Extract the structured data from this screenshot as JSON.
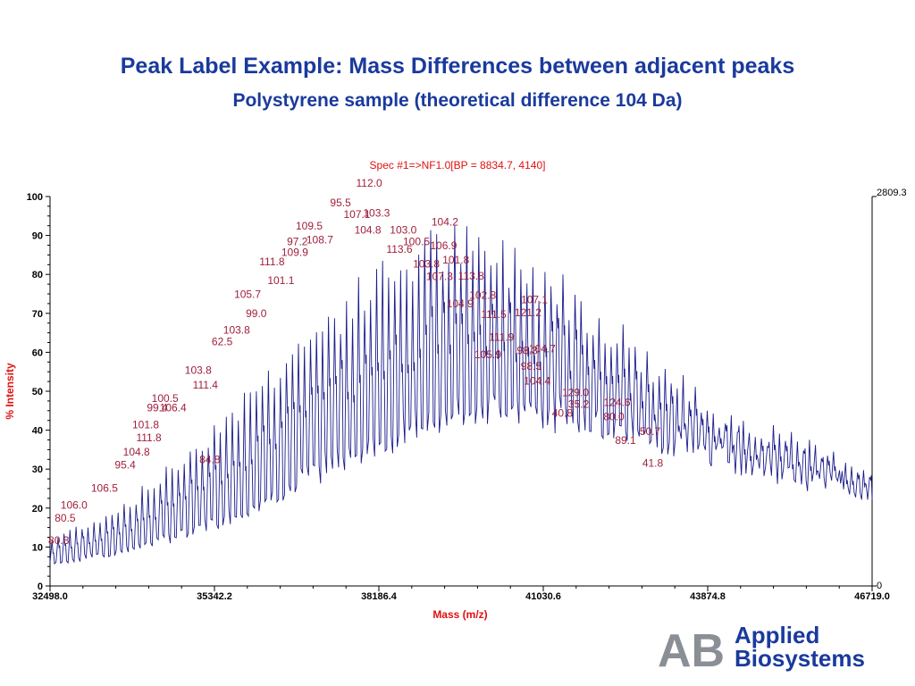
{
  "header": {
    "title": "Peak Label Example: Mass Differences between adjacent peaks",
    "subtitle": "Polystyrene sample (theoretical difference 104 Da)"
  },
  "colors": {
    "title": "#1a3a9c",
    "trace": "#1c1c8c",
    "labels": "#a0203c",
    "axis_title": "#e01010"
  },
  "logo": {
    "mark": "AB",
    "line1": "Applied",
    "line2": "Biosystems"
  },
  "chart_data": {
    "type": "line",
    "title": "Spec #1=>NF1.0[BP = 8834.7, 4140]",
    "xlabel": "Mass (m/z)",
    "ylabel": "% Intensity",
    "xlim": [
      32498.0,
      46719.0
    ],
    "ylim": [
      0,
      100
    ],
    "x_ticks": [
      "32498.0",
      "35342.2",
      "38186.4",
      "41030.6",
      "43874.8",
      "46719.0"
    ],
    "y_ticks": [
      "0",
      "10",
      "20",
      "30",
      "40",
      "50",
      "60",
      "70",
      "80",
      "90",
      "100"
    ],
    "right_axis": {
      "top": "2809.3",
      "bottom": "0"
    },
    "grid": false,
    "peak_spacing_da": 104,
    "envelope": [
      {
        "x": 32498,
        "y": 12
      },
      {
        "x": 33000,
        "y": 16
      },
      {
        "x": 33500,
        "y": 19
      },
      {
        "x": 34000,
        "y": 24
      },
      {
        "x": 34500,
        "y": 30
      },
      {
        "x": 35000,
        "y": 37
      },
      {
        "x": 35500,
        "y": 45
      },
      {
        "x": 36000,
        "y": 52
      },
      {
        "x": 36500,
        "y": 60
      },
      {
        "x": 37000,
        "y": 67
      },
      {
        "x": 37500,
        "y": 74
      },
      {
        "x": 38000,
        "y": 80
      },
      {
        "x": 38500,
        "y": 86
      },
      {
        "x": 39000,
        "y": 91
      },
      {
        "x": 39500,
        "y": 92
      },
      {
        "x": 40000,
        "y": 90
      },
      {
        "x": 40500,
        "y": 88
      },
      {
        "x": 41000,
        "y": 85
      },
      {
        "x": 41500,
        "y": 79
      },
      {
        "x": 42000,
        "y": 73
      },
      {
        "x": 42500,
        "y": 66
      },
      {
        "x": 43000,
        "y": 59
      },
      {
        "x": 43500,
        "y": 53
      },
      {
        "x": 44000,
        "y": 48
      },
      {
        "x": 44500,
        "y": 44
      },
      {
        "x": 45000,
        "y": 41
      },
      {
        "x": 45500,
        "y": 38
      },
      {
        "x": 46000,
        "y": 35
      },
      {
        "x": 46719,
        "y": 32
      }
    ],
    "baseline": [
      {
        "x": 32498,
        "y": 6
      },
      {
        "x": 33500,
        "y": 8
      },
      {
        "x": 34500,
        "y": 12
      },
      {
        "x": 35500,
        "y": 17
      },
      {
        "x": 36500,
        "y": 24
      },
      {
        "x": 37500,
        "y": 32
      },
      {
        "x": 38500,
        "y": 39
      },
      {
        "x": 39500,
        "y": 44
      },
      {
        "x": 40500,
        "y": 46
      },
      {
        "x": 41500,
        "y": 44
      },
      {
        "x": 42500,
        "y": 40
      },
      {
        "x": 43500,
        "y": 36
      },
      {
        "x": 44500,
        "y": 32
      },
      {
        "x": 45500,
        "y": 28
      },
      {
        "x": 46719,
        "y": 24
      }
    ],
    "annotations": [
      {
        "text": "80.3",
        "x": 32648,
        "y": 10.8
      },
      {
        "text": "80.5",
        "x": 32760,
        "y": 16.5
      },
      {
        "text": "106.0",
        "x": 32912,
        "y": 19.8
      },
      {
        "text": "106.5",
        "x": 33439,
        "y": 24.2
      },
      {
        "text": "95.4",
        "x": 33798,
        "y": 30.2
      },
      {
        "text": "104.8",
        "x": 33993,
        "y": 33.5
      },
      {
        "text": "111.8",
        "x": 34208,
        "y": 37.2
      },
      {
        "text": "101.8",
        "x": 34152,
        "y": 40.5
      },
      {
        "text": "99.4",
        "x": 34353,
        "y": 44.8
      },
      {
        "text": "106.4",
        "x": 34627,
        "y": 44.8
      },
      {
        "text": "100.5",
        "x": 34487,
        "y": 47.2
      },
      {
        "text": "103.8",
        "x": 35061,
        "y": 54.5
      },
      {
        "text": "111.4",
        "x": 35184,
        "y": 50.7
      },
      {
        "text": "84.8",
        "x": 35262,
        "y": 31.5
      },
      {
        "text": "62.5",
        "x": 35475,
        "y": 61.8
      },
      {
        "text": "103.8",
        "x": 35726,
        "y": 64.8
      },
      {
        "text": "105.7",
        "x": 35916,
        "y": 74.0
      },
      {
        "text": "99.0",
        "x": 36066,
        "y": 69.0
      },
      {
        "text": "111.8",
        "x": 36338,
        "y": 82.3
      },
      {
        "text": "101.1",
        "x": 36493,
        "y": 77.5
      },
      {
        "text": "109.9",
        "x": 36732,
        "y": 84.8
      },
      {
        "text": "97.2",
        "x": 36777,
        "y": 87.5
      },
      {
        "text": "109.5",
        "x": 36981,
        "y": 91.5
      },
      {
        "text": "108.7",
        "x": 37165,
        "y": 88.0
      },
      {
        "text": "95.5",
        "x": 37523,
        "y": 97.5
      },
      {
        "text": "107.1",
        "x": 37808,
        "y": 94.5
      },
      {
        "text": "112.0",
        "x": 38018,
        "y": 102.5
      },
      {
        "text": "103.3",
        "x": 38146,
        "y": 94.8
      },
      {
        "text": "104.8",
        "x": 37995,
        "y": 90.5
      },
      {
        "text": "103.0",
        "x": 38609,
        "y": 90.5
      },
      {
        "text": "113.6",
        "x": 38542,
        "y": 85.5
      },
      {
        "text": "100.5",
        "x": 38835,
        "y": 87.5
      },
      {
        "text": "104.2",
        "x": 39328,
        "y": 92.5
      },
      {
        "text": "106.9",
        "x": 39306,
        "y": 86.5
      },
      {
        "text": "101.8",
        "x": 39519,
        "y": 82.8
      },
      {
        "text": "103.8",
        "x": 39007,
        "y": 81.8
      },
      {
        "text": "107.3",
        "x": 39236,
        "y": 78.5
      },
      {
        "text": "113.8",
        "x": 39782,
        "y": 78.7
      },
      {
        "text": "104.9",
        "x": 39590,
        "y": 71.6
      },
      {
        "text": "102.8",
        "x": 39983,
        "y": 73.7
      },
      {
        "text": "111.5",
        "x": 40173,
        "y": 68.8
      },
      {
        "text": "111.9",
        "x": 40307,
        "y": 63.0
      },
      {
        "text": "105.9",
        "x": 40073,
        "y": 58.5
      },
      {
        "text": "121.2",
        "x": 40766,
        "y": 69.3
      },
      {
        "text": "107.1",
        "x": 40877,
        "y": 72.6
      },
      {
        "text": "98.3",
        "x": 40754,
        "y": 59.5
      },
      {
        "text": "104.7",
        "x": 41012,
        "y": 60.0
      },
      {
        "text": "98.5",
        "x": 40821,
        "y": 55.5
      },
      {
        "text": "104.4",
        "x": 40926,
        "y": 51.7
      },
      {
        "text": "129.0",
        "x": 41587,
        "y": 48.7
      },
      {
        "text": "40.8",
        "x": 41362,
        "y": 43.5
      },
      {
        "text": "35.2",
        "x": 41642,
        "y": 45.7
      },
      {
        "text": "124.6",
        "x": 42308,
        "y": 46.2
      },
      {
        "text": "80.0",
        "x": 42251,
        "y": 42.5
      },
      {
        "text": "89.1",
        "x": 42453,
        "y": 36.5
      },
      {
        "text": "50.7",
        "x": 42878,
        "y": 38.8
      },
      {
        "text": "41.8",
        "x": 42924,
        "y": 30.6
      }
    ]
  }
}
